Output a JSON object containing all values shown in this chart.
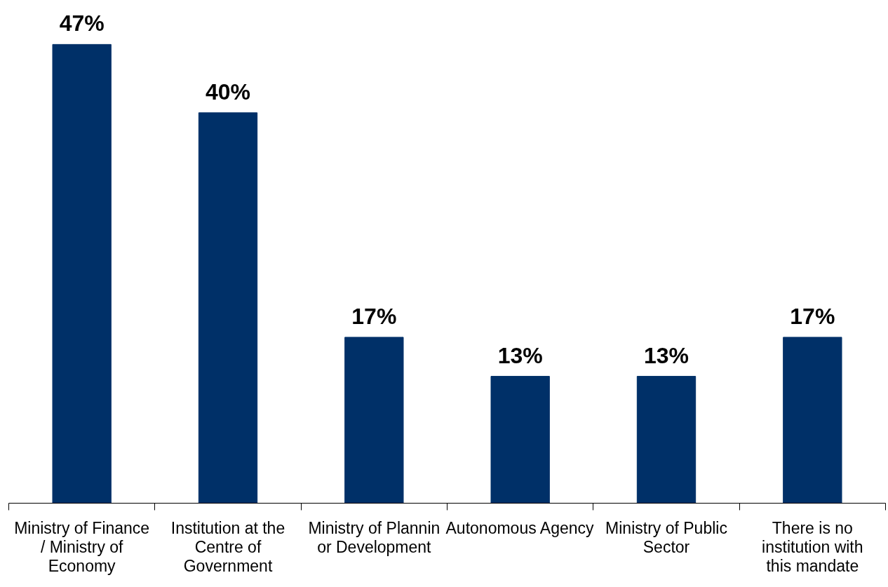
{
  "chart_data": {
    "type": "bar",
    "categories": [
      "Ministry of Finance / Ministry of Economy",
      "Institution at the Centre of Government",
      "Ministry of Plannin or Development",
      "Autonomous Agency",
      "Ministry of Public Sector",
      "There is no institution with this mandate"
    ],
    "values": [
      47,
      40,
      17,
      13,
      13,
      17
    ],
    "value_labels": [
      "47%",
      "40%",
      "17%",
      "13%",
      "13%",
      "17%"
    ],
    "color": "#003068",
    "tick_labels": "x",
    "grid": false
  }
}
